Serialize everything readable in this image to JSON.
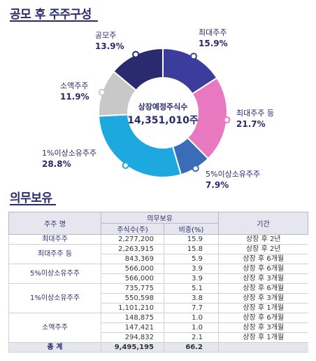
{
  "section1_title": "공모 후 주주구성",
  "section2_title": "의무보유",
  "chart_data": {
    "type": "pie",
    "center_label": "상장예정주식수",
    "center_value": "14,351,010주",
    "slices": [
      {
        "label": "최대주주",
        "pct_text": "15.9%",
        "value": 15.9,
        "color": "#3c3c9c"
      },
      {
        "label": "최대주주 등",
        "pct_text": "21.7%",
        "value": 21.7,
        "color": "#e878c0"
      },
      {
        "label": "5%이상소유주주",
        "pct_text": "7.9%",
        "value": 7.9,
        "color": "#3a6cb8"
      },
      {
        "label": "1%이상소유주주",
        "pct_text": "28.8%",
        "value": 28.8,
        "color": "#1ea8e0"
      },
      {
        "label": "소액주주",
        "pct_text": "11.9%",
        "value": 11.9,
        "color": "#c8c8c8"
      },
      {
        "label": "공모주",
        "pct_text": "13.9%",
        "value": 13.9,
        "color": "#2a2a6e"
      }
    ]
  },
  "table": {
    "headers": {
      "holder": "주주 명",
      "lockup": "의무보유",
      "shares": "주식수(주)",
      "ratio": "비중(%)",
      "period": "기간"
    },
    "groups": [
      {
        "holder": "최대주주",
        "rows": [
          {
            "shares": "2,277,200",
            "ratio": "15.9",
            "period": "상장 후 2년"
          }
        ]
      },
      {
        "holder": "최대주주 등",
        "rows": [
          {
            "shares": "2,263,915",
            "ratio": "15.8",
            "period": "상장 후 2년"
          },
          {
            "shares": "843,369",
            "ratio": "5.9",
            "period": "상장 후 6개월"
          }
        ]
      },
      {
        "holder": "5%이상소유주주",
        "rows": [
          {
            "shares": "566,000",
            "ratio": "3.9",
            "period": "상장 후 6개월"
          },
          {
            "shares": "566,000",
            "ratio": "3.9",
            "period": "상장 후 3개월"
          }
        ]
      },
      {
        "holder": "1%이상소유주주",
        "rows": [
          {
            "shares": "735,775",
            "ratio": "5.1",
            "period": "상장 후 6개월"
          },
          {
            "shares": "550,598",
            "ratio": "3.8",
            "period": "상장 후 3개월"
          },
          {
            "shares": "1,101,210",
            "ratio": "7.7",
            "period": "상장 후 1개월"
          }
        ]
      },
      {
        "holder": "소액주주",
        "rows": [
          {
            "shares": "148,875",
            "ratio": "1.0",
            "period": "상장 후 6개월"
          },
          {
            "shares": "147,421",
            "ratio": "1.0",
            "period": "상장 후 3개월"
          },
          {
            "shares": "294,832",
            "ratio": "2.1",
            "period": "상장 후 1개월"
          }
        ]
      }
    ],
    "total": {
      "holder": "총 계",
      "shares": "9,495,195",
      "ratio": "66.2",
      "period": ""
    }
  }
}
